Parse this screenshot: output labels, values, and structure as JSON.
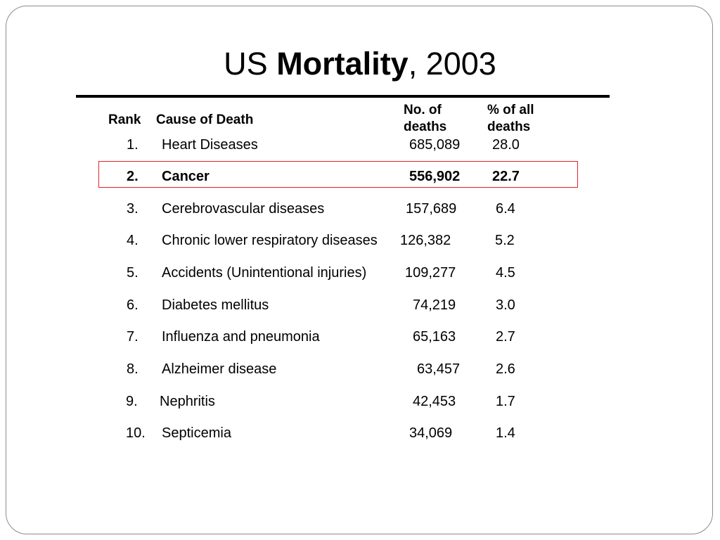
{
  "title": {
    "prefix": "US ",
    "emphasis": "Mortality",
    "suffix": ", 2003"
  },
  "table": {
    "headers": {
      "rank": "Rank",
      "cause": "Cause of Death",
      "deaths_line1": "No. of",
      "deaths_line2": "deaths",
      "percent_line1": "% of all",
      "percent_line2": "deaths"
    },
    "rows": [
      {
        "rank": "1.",
        "cause": "Heart Diseases",
        "deaths": "685,089",
        "percent": "28.0"
      },
      {
        "rank": "2.",
        "cause": "Cancer",
        "deaths": "556,902",
        "percent": "22.7",
        "highlighted": true
      },
      {
        "rank": "3.",
        "cause": "Cerebrovascular diseases",
        "deaths": "157,689",
        "percent": "6.4"
      },
      {
        "rank": "4.",
        "cause": "Chronic lower respiratory diseases",
        "deaths": "126,382",
        "percent": "5.2"
      },
      {
        "rank": "5.",
        "cause": "Accidents (Unintentional injuries)",
        "deaths": "109,277",
        "percent": "4.5"
      },
      {
        "rank": "6.",
        "cause": "Diabetes mellitus",
        "deaths": "74,219",
        "percent": "3.0"
      },
      {
        "rank": "7.",
        "cause": "Influenza and pneumonia",
        "deaths": "65,163",
        "percent": "2.7"
      },
      {
        "rank": "8.",
        "cause": "Alzheimer disease",
        "deaths": "63,457",
        "percent": "2.6"
      },
      {
        "rank": "9.",
        "cause": "Nephritis",
        "deaths": "42,453",
        "percent": "1.7"
      },
      {
        "rank": "10.",
        "cause": "Septicemia",
        "deaths": "34,069",
        "percent": "1.4"
      }
    ]
  },
  "colors": {
    "highlight_border": "#e3242b",
    "slide_border": "#8c8c8c"
  }
}
